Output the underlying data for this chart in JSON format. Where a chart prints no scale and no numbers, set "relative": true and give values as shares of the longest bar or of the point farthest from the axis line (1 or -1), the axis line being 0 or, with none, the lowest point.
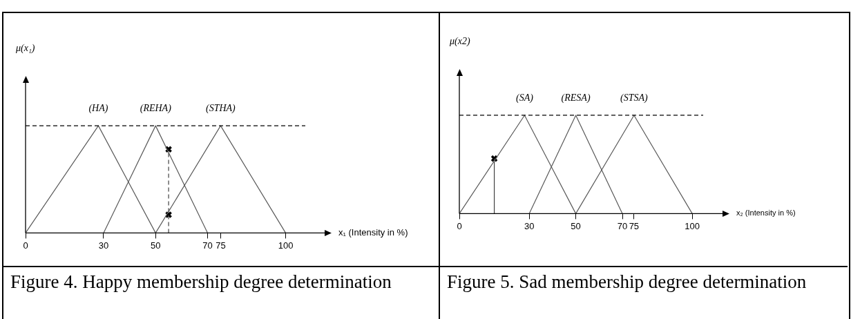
{
  "chart_data": [
    {
      "type": "line",
      "relative": true,
      "xlabel": "x₁ (Intensity in %)",
      "ylabel": "μ(x₁)",
      "xlim": [
        0,
        115
      ],
      "xticks": [
        0,
        30,
        50,
        70,
        75,
        100
      ],
      "grid": false,
      "legend": false,
      "tick_labels": "x",
      "ref_lines": [
        {
          "axis": "y",
          "value": 1,
          "line_style": "dashed",
          "color": "#000000"
        }
      ],
      "annotations": [
        "Figure 4. Happy membership degree determination"
      ],
      "series": [
        {
          "name": "(HA)",
          "color": "#595959",
          "x": [
            0,
            28,
            50
          ],
          "values": [
            0,
            1,
            0
          ],
          "marker": "none"
        },
        {
          "name": "(REHA)",
          "color": "#595959",
          "x": [
            30,
            50,
            70
          ],
          "values": [
            0,
            1,
            0
          ],
          "marker": "none"
        },
        {
          "name": "(STHA)",
          "color": "#595959",
          "x": [
            50,
            75,
            100
          ],
          "values": [
            0,
            1,
            0
          ],
          "marker": "none"
        },
        {
          "type": "line",
          "color": "#404040",
          "x": [
            55,
            55
          ],
          "values": [
            0,
            0.78
          ],
          "marker": "none",
          "line_style": "dashed"
        },
        {
          "type": "scatter",
          "color": "#000000",
          "x": [
            55,
            55
          ],
          "values": [
            0.78,
            0.17
          ],
          "marker": "cross"
        }
      ]
    },
    {
      "type": "line",
      "relative": true,
      "xlabel": "x₂ (Intensity in %)",
      "ylabel": "μ(x2)",
      "xlim": [
        0,
        113
      ],
      "xticks": [
        0,
        30,
        50,
        70,
        75,
        100
      ],
      "grid": false,
      "legend": false,
      "tick_labels": "x",
      "ref_lines": [
        {
          "axis": "y",
          "value": 1,
          "line_style": "dashed",
          "color": "#000000"
        }
      ],
      "annotations": [
        "Figure 5. Sad membership degree determination"
      ],
      "series": [
        {
          "name": "(SA)",
          "color": "#595959",
          "x": [
            0,
            28,
            50
          ],
          "values": [
            0,
            1,
            0
          ],
          "marker": "none"
        },
        {
          "name": "(RESA)",
          "color": "#595959",
          "x": [
            30,
            50,
            70
          ],
          "values": [
            0,
            1,
            0
          ],
          "marker": "none"
        },
        {
          "name": "(STSA)",
          "color": "#595959",
          "x": [
            50,
            75,
            100
          ],
          "values": [
            0,
            1,
            0
          ],
          "marker": "none"
        },
        {
          "type": "line",
          "color": "#404040",
          "x": [
            15,
            15
          ],
          "values": [
            0,
            0.56
          ],
          "marker": "none",
          "line_style": "solid"
        },
        {
          "type": "scatter",
          "color": "#000000",
          "x": [
            15
          ],
          "values": [
            0.56
          ],
          "marker": "cross"
        }
      ]
    }
  ]
}
